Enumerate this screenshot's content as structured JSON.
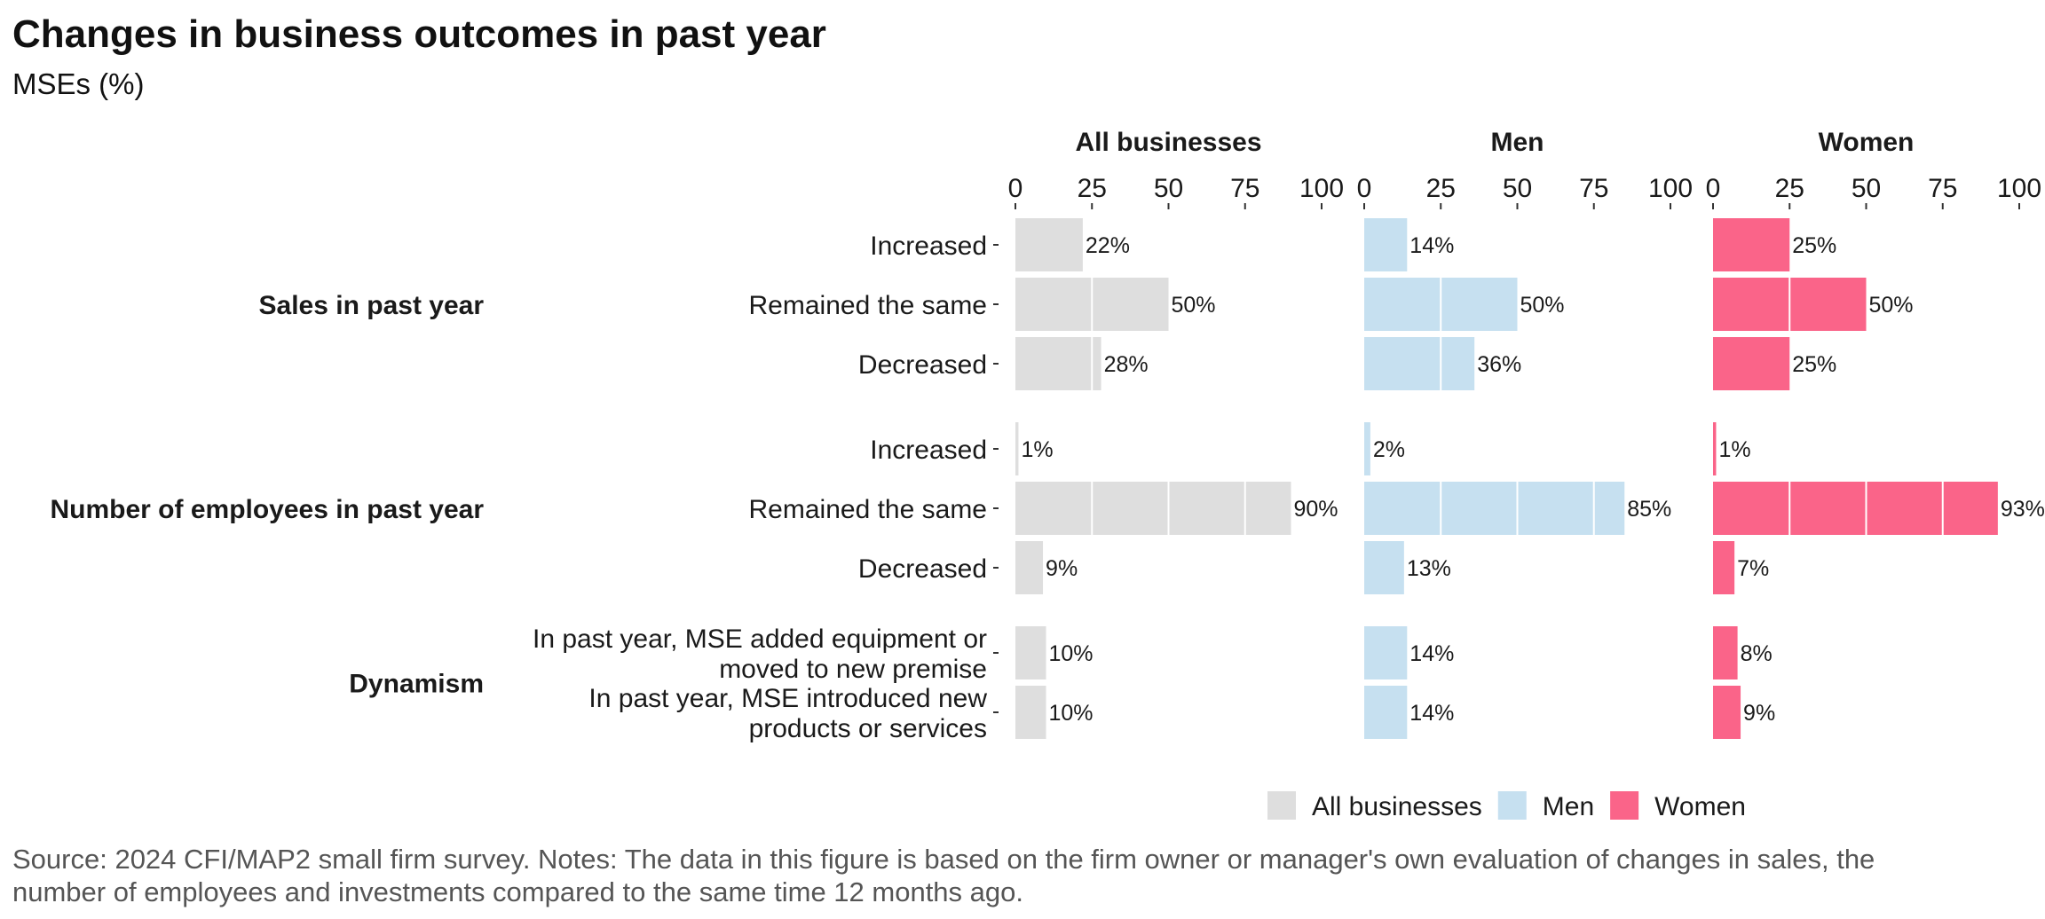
{
  "chart_data": {
    "type": "bar",
    "orientation": "horizontal",
    "title": "Changes in business outcomes in past year",
    "subtitle": "MSEs (%)",
    "source": "Source: 2024 CFI/MAP2 small firm survey. Notes: The data in this figure is based on the firm owner or manager's own evaluation of changes in sales, the number of employees and investments compared to the same time 12 months ago.",
    "xlim": [
      0,
      100
    ],
    "x_ticks": [
      "0",
      "25",
      "50",
      "75",
      "100"
    ],
    "grid": false,
    "legend_position": "bottom-right",
    "groups": [
      {
        "label": "Sales in past year",
        "categories": [
          "Increased",
          "Remained the same",
          "Decreased"
        ]
      },
      {
        "label": "Number of employees in past year",
        "categories": [
          "Increased",
          "Remained the same",
          "Decreased"
        ]
      },
      {
        "label": "Dynamism",
        "categories": [
          "In past year, MSE added equipment or moved to new premise",
          "In past year, MSE introduced new products or services"
        ]
      }
    ],
    "series": [
      {
        "name": "All businesses",
        "color": "#dedede",
        "values": [
          22,
          50,
          28,
          1,
          90,
          9,
          10,
          10
        ],
        "labels": [
          "22%",
          "50%",
          "28%",
          "1%",
          "90%",
          "9%",
          "10%",
          "10%"
        ]
      },
      {
        "name": "Men",
        "color": "#c6e0f0",
        "values": [
          14,
          50,
          36,
          2,
          85,
          13,
          14,
          14
        ],
        "labels": [
          "14%",
          "50%",
          "36%",
          "2%",
          "85%",
          "13%",
          "14%",
          "14%"
        ]
      },
      {
        "name": "Women",
        "color": "#fa6489",
        "values": [
          25,
          50,
          25,
          1,
          93,
          7,
          8,
          9
        ],
        "labels": [
          "25%",
          "50%",
          "25%",
          "1%",
          "93%",
          "7%",
          "8%",
          "9%"
        ]
      }
    ]
  }
}
